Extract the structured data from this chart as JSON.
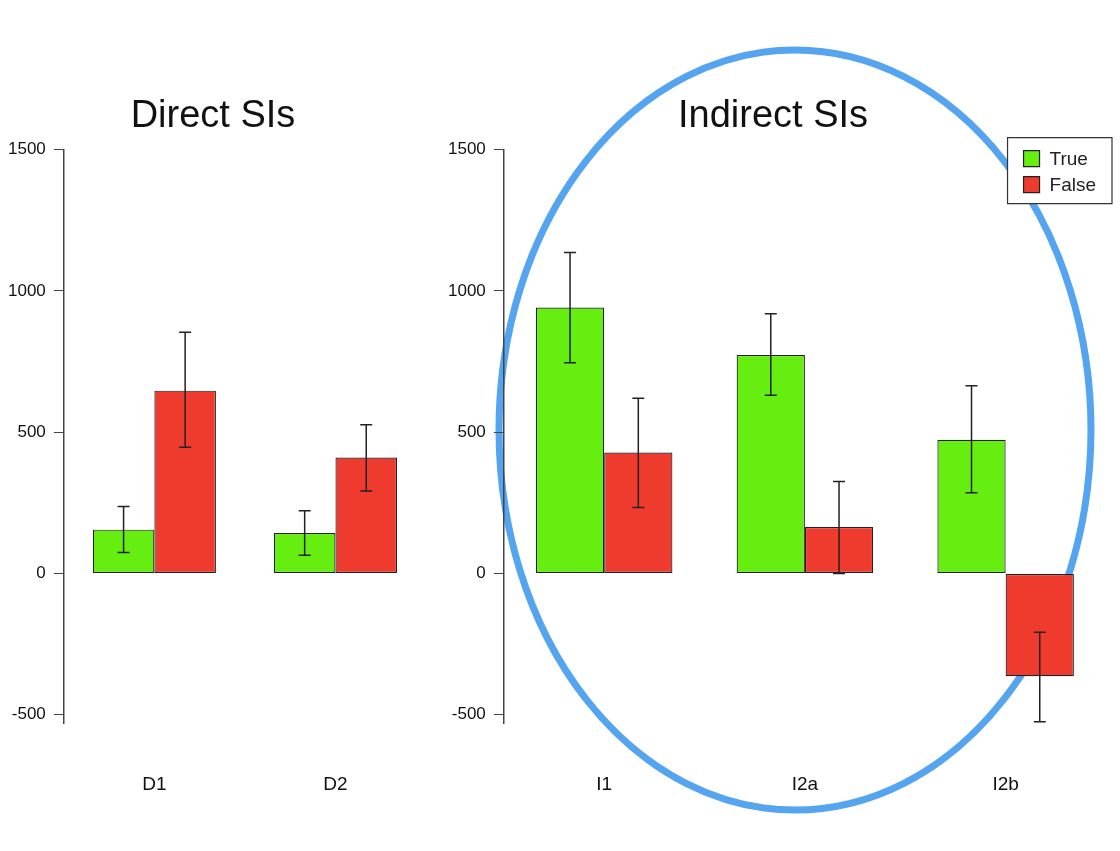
{
  "chart_data": [
    {
      "type": "bar",
      "title": "Direct SIs",
      "categories": [
        "D1",
        "D2"
      ],
      "series": [
        {
          "color": "#66ee11",
          "values": [
            155,
            143
          ],
          "errors": [
            [
              74,
              237
            ],
            [
              64,
              222
            ]
          ]
        },
        {
          "color": "#ee3b2d",
          "values": [
            647,
            410
          ],
          "errors": [
            [
              447,
              854
            ],
            [
              292,
              526
            ]
          ]
        }
      ],
      "ylim": [
        -530,
        1500
      ],
      "yticks": [
        -500,
        0,
        500,
        1000,
        1500
      ],
      "grid": false,
      "legend": false
    },
    {
      "type": "bar",
      "title": "Indirect SIs",
      "categories": [
        "I1",
        "I2a",
        "I2b"
      ],
      "series": [
        {
          "name": "True",
          "color": "#66ee11",
          "values": [
            941,
            773,
            473
          ],
          "errors": [
            [
              746,
              1136
            ],
            [
              631,
              919
            ],
            [
              286,
              664
            ]
          ]
        },
        {
          "name": "False",
          "color": "#ee3b2d",
          "values": [
            428,
            164,
            -364
          ],
          "errors": [
            [
              233,
              620
            ],
            [
              0,
              325
            ],
            [
              -525,
              -208
            ]
          ]
        }
      ],
      "ylim": [
        -530,
        1500
      ],
      "yticks": [
        -500,
        0,
        500,
        1000,
        1500
      ],
      "grid": false,
      "legend": "top right"
    }
  ]
}
